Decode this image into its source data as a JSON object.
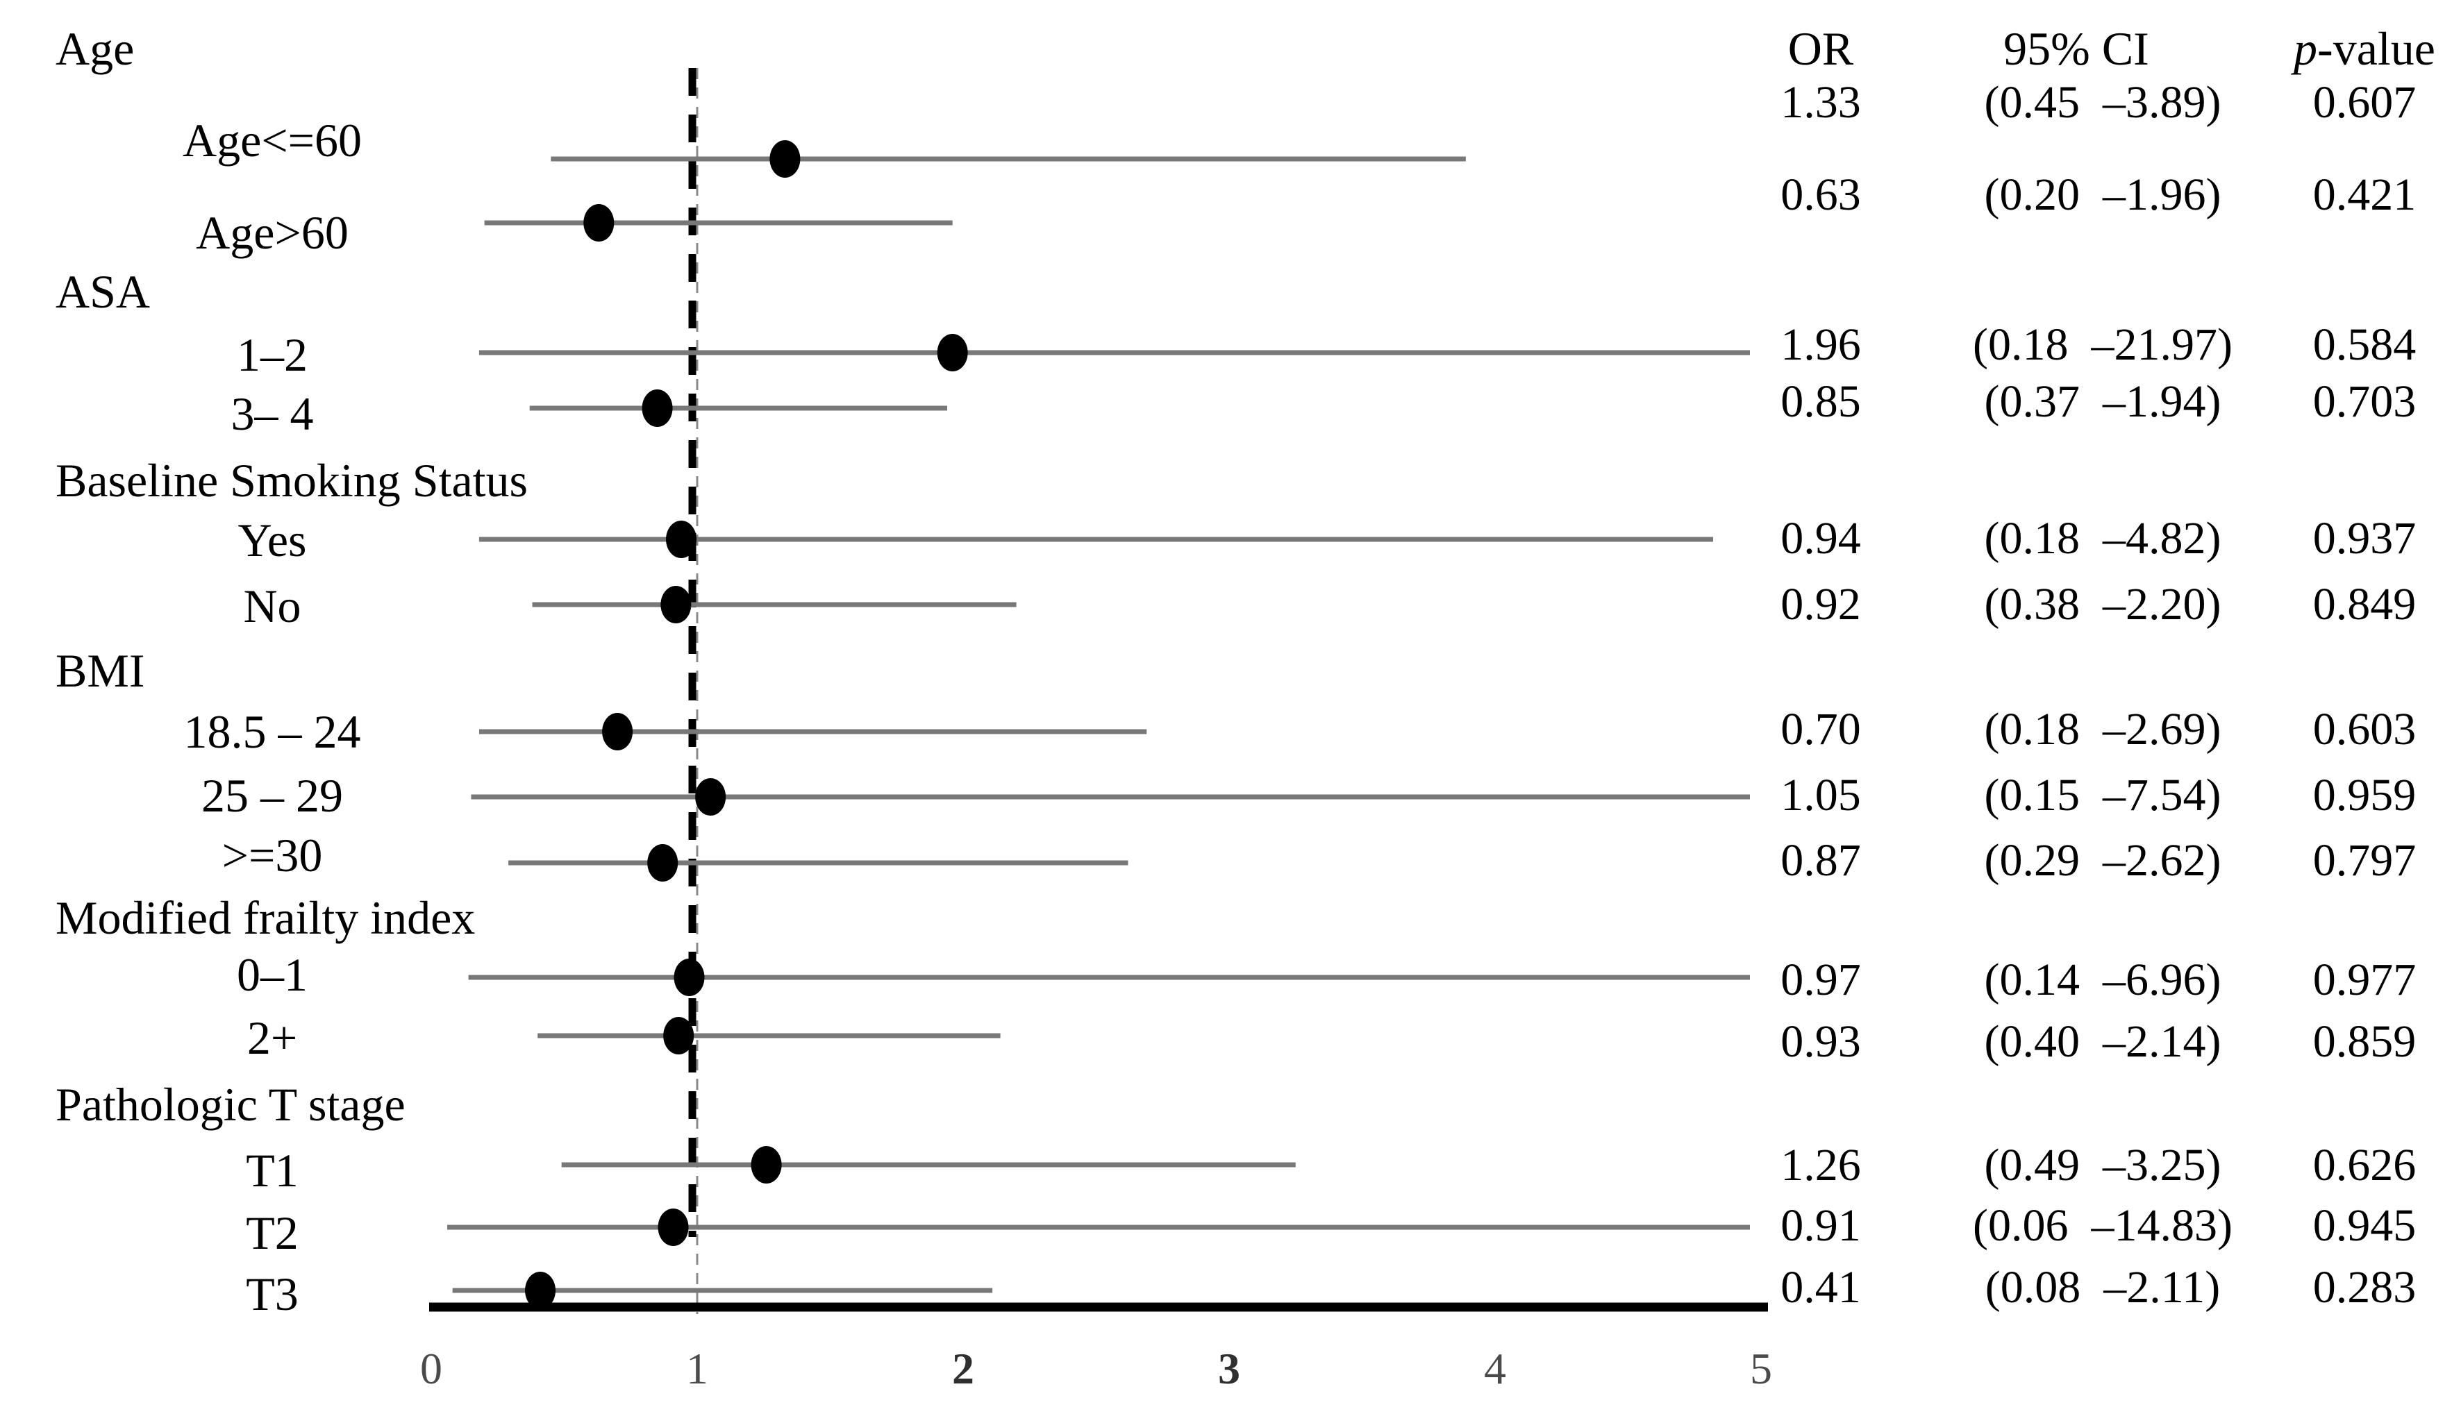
{
  "table": {
    "headers": {
      "or": "OR",
      "ci": "95% CI",
      "p_italic": "p",
      "p_rest": "-value"
    }
  },
  "chart_data": {
    "type": "forest",
    "title": "",
    "xlabel": "",
    "xlim": [
      0,
      5
    ],
    "grid": false,
    "reference_value": 1,
    "xticks": [
      {
        "label": "0",
        "value": 0,
        "bold": false
      },
      {
        "label": "1",
        "value": 1,
        "bold": false
      },
      {
        "label": "2",
        "value": 2,
        "bold": true
      },
      {
        "label": "3",
        "value": 3,
        "bold": true
      },
      {
        "label": "4",
        "value": 4,
        "bold": false
      },
      {
        "label": "5",
        "value": 5,
        "bold": false
      }
    ],
    "marker_color": "#000000",
    "ci_line_color": "#787878",
    "groups": [
      {
        "label": "Age",
        "items": [
          {
            "label": "Age<=60",
            "or": 1.33,
            "ci_low": 0.45,
            "ci_high": 3.89,
            "or_text": "1.33",
            "ci_text": "(0.45  –3.89)",
            "p_text": "0.607"
          },
          {
            "label": "Age>60",
            "or": 0.63,
            "ci_low": 0.2,
            "ci_high": 1.96,
            "or_text": "0.63",
            "ci_text": "(0.20  –1.96)",
            "p_text": "0.421"
          }
        ]
      },
      {
        "label": "ASA",
        "items": [
          {
            "label": "1–2",
            "or": 1.96,
            "ci_low": 0.18,
            "ci_high": 21.97,
            "or_text": "1.96",
            "ci_text": "(0.18  –21.97)",
            "p_text": "0.584"
          },
          {
            "label": "3– 4",
            "or": 0.85,
            "ci_low": 0.37,
            "ci_high": 1.94,
            "or_text": "0.85",
            "ci_text": "(0.37  –1.94)",
            "p_text": "0.703"
          }
        ]
      },
      {
        "label": "Baseline Smoking Status",
        "items": [
          {
            "label": "Yes",
            "or": 0.94,
            "ci_low": 0.18,
            "ci_high": 4.82,
            "or_text": "0.94",
            "ci_text": "(0.18  –4.82)",
            "p_text": "0.937"
          },
          {
            "label": "No",
            "or": 0.92,
            "ci_low": 0.38,
            "ci_high": 2.2,
            "or_text": "0.92",
            "ci_text": "(0.38  –2.20)",
            "p_text": "0.849"
          }
        ]
      },
      {
        "label": "BMI",
        "items": [
          {
            "label": "18.5 – 24",
            "or": 0.7,
            "ci_low": 0.18,
            "ci_high": 2.69,
            "or_text": "0.70",
            "ci_text": "(0.18  –2.69)",
            "p_text": "0.603"
          },
          {
            "label": "25 – 29",
            "or": 1.05,
            "ci_low": 0.15,
            "ci_high": 7.54,
            "or_text": "1.05",
            "ci_text": "(0.15  –7.54)",
            "p_text": "0.959"
          },
          {
            "label": ">=30",
            "or": 0.87,
            "ci_low": 0.29,
            "ci_high": 2.62,
            "or_text": "0.87",
            "ci_text": "(0.29  –2.62)",
            "p_text": "0.797"
          }
        ]
      },
      {
        "label": "Modified frailty index",
        "items": [
          {
            "label": "0–1",
            "or": 0.97,
            "ci_low": 0.14,
            "ci_high": 6.96,
            "or_text": "0.97",
            "ci_text": "(0.14  –6.96)",
            "p_text": "0.977"
          },
          {
            "label": "2+",
            "or": 0.93,
            "ci_low": 0.4,
            "ci_high": 2.14,
            "or_text": "0.93",
            "ci_text": "(0.40  –2.14)",
            "p_text": "0.859"
          }
        ]
      },
      {
        "label": "Pathologic T stage",
        "items": [
          {
            "label": "T1",
            "or": 1.26,
            "ci_low": 0.49,
            "ci_high": 3.25,
            "or_text": "1.26",
            "ci_text": "(0.49  –3.25)",
            "p_text": "0.626"
          },
          {
            "label": "T2",
            "or": 0.91,
            "ci_low": 0.06,
            "ci_high": 14.83,
            "or_text": "0.91",
            "ci_text": "(0.06  –14.83)",
            "p_text": "0.945"
          },
          {
            "label": "T3",
            "or": 0.41,
            "ci_low": 0.08,
            "ci_high": 2.11,
            "or_text": "0.41",
            "ci_text": "(0.08  –2.11)",
            "p_text": "0.283"
          }
        ]
      }
    ]
  }
}
